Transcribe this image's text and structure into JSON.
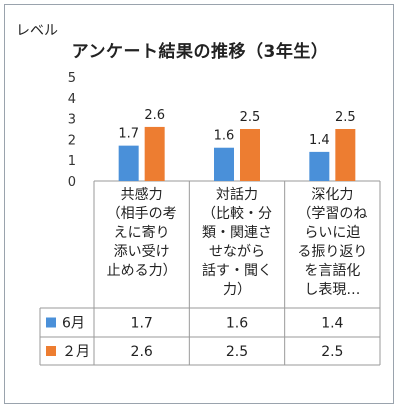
{
  "chart_data": {
    "type": "bar",
    "title": "アンケート結果の推移（3年生）",
    "ylabel": "レベル",
    "ylim": [
      0,
      5
    ],
    "yticks": [
      "0",
      "1",
      "2",
      "3",
      "4",
      "5"
    ],
    "grid": false,
    "categories": [
      [
        "共感力",
        "（相手の考",
        "えに寄り",
        "添い受け",
        "止める力）"
      ],
      [
        "対話力",
        "（比較・分",
        "類・関連さ",
        "せながら",
        "話す・聞く",
        "力）"
      ],
      [
        "深化力",
        "（学習のね",
        "らいに迫",
        "る振り返り",
        "を言語化",
        "し表現…"
      ]
    ],
    "series": [
      {
        "name": "6月",
        "values": [
          1.7,
          1.6,
          1.4
        ],
        "labels": [
          "1.7",
          "1.6",
          "1.4"
        ],
        "color": "#4a90d9"
      },
      {
        "name": "２月",
        "values": [
          2.6,
          2.5,
          2.5
        ],
        "labels": [
          "2.6",
          "2.5",
          "2.5"
        ],
        "color": "#ed7d31"
      }
    ]
  }
}
